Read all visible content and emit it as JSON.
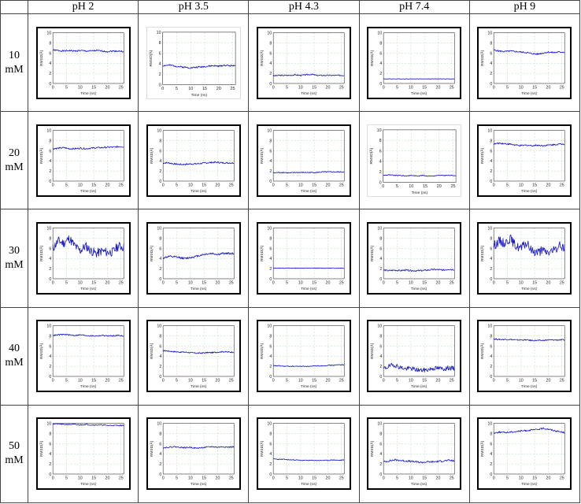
{
  "table": {
    "columns": [
      "pH 2",
      "pH 3.5",
      "pH 4.3",
      "pH 7.4",
      "pH 9"
    ],
    "rows": [
      {
        "value": "10",
        "unit": "mM"
      },
      {
        "value": "20",
        "unit": "mM"
      },
      {
        "value": "30",
        "unit": "mM"
      },
      {
        "value": "40",
        "unit": "mM"
      },
      {
        "value": "50",
        "unit": "mM"
      }
    ]
  },
  "chart_axes": {
    "xlabel": "Time (ns)",
    "ylabel": "RMSD(Å)",
    "xticks": [
      "0",
      "5",
      "10",
      "15",
      "20",
      "25"
    ],
    "yticks": [
      "0",
      "2",
      "4",
      "6",
      "8",
      "10"
    ],
    "xlim": [
      0,
      26
    ],
    "ylim": [
      0,
      10
    ]
  },
  "series_color": "#1a1acc",
  "chart_data": [
    {
      "type": "line",
      "row": "10 mM",
      "col": "pH 2",
      "framed": true,
      "x": [
        0,
        2,
        4,
        6,
        8,
        10,
        12,
        14,
        16,
        18,
        20,
        22,
        24,
        26
      ],
      "y": [
        6.6,
        6.5,
        6.4,
        6.5,
        6.4,
        6.5,
        6.4,
        6.4,
        6.5,
        6.4,
        6.3,
        6.4,
        6.4,
        6.3
      ],
      "noise": 0.15
    },
    {
      "type": "line",
      "row": "10 mM",
      "col": "pH 3.5",
      "framed": false,
      "x": [
        0,
        2,
        4,
        6,
        8,
        10,
        12,
        14,
        16,
        18,
        20,
        22,
        24,
        26
      ],
      "y": [
        3.6,
        3.7,
        3.6,
        3.4,
        3.3,
        3.2,
        3.3,
        3.4,
        3.5,
        3.6,
        3.5,
        3.7,
        3.6,
        3.7
      ],
      "noise": 0.15
    },
    {
      "type": "line",
      "row": "10 mM",
      "col": "pH 4.3",
      "framed": true,
      "x": [
        0,
        2,
        4,
        6,
        8,
        10,
        12,
        14,
        16,
        18,
        20,
        22,
        24,
        26
      ],
      "y": [
        1.5,
        1.6,
        1.6,
        1.6,
        1.7,
        1.6,
        1.7,
        1.8,
        1.6,
        1.6,
        1.6,
        1.6,
        1.6,
        1.6
      ],
      "noise": 0.12
    },
    {
      "type": "line",
      "row": "10 mM",
      "col": "pH 7.4",
      "framed": true,
      "x": [
        0,
        2,
        4,
        6,
        8,
        10,
        12,
        14,
        16,
        18,
        20,
        22,
        24,
        26
      ],
      "y": [
        0.9,
        0.9,
        0.9,
        0.9,
        0.9,
        0.9,
        0.9,
        0.9,
        0.9,
        0.9,
        0.9,
        0.9,
        0.9,
        0.9
      ],
      "noise": 0.04
    },
    {
      "type": "line",
      "row": "10 mM",
      "col": "pH 9",
      "framed": true,
      "x": [
        0,
        2,
        4,
        6,
        8,
        10,
        12,
        14,
        16,
        18,
        20,
        22,
        24,
        26
      ],
      "y": [
        6.6,
        6.4,
        6.3,
        6.4,
        6.3,
        6.2,
        6.1,
        5.9,
        5.8,
        6.0,
        6.2,
        6.1,
        6.2,
        6.2
      ],
      "noise": 0.15
    },
    {
      "type": "line",
      "row": "20 mM",
      "col": "pH 2",
      "framed": true,
      "x": [
        0,
        2,
        4,
        6,
        8,
        10,
        12,
        14,
        16,
        18,
        20,
        22,
        24,
        26
      ],
      "y": [
        6.4,
        6.5,
        6.6,
        6.4,
        6.4,
        6.5,
        6.4,
        6.5,
        6.6,
        6.6,
        6.7,
        6.7,
        6.8,
        6.8
      ],
      "noise": 0.15
    },
    {
      "type": "line",
      "row": "20 mM",
      "col": "pH 3.5",
      "framed": true,
      "x": [
        0,
        2,
        4,
        6,
        8,
        10,
        12,
        14,
        16,
        18,
        20,
        22,
        24,
        26
      ],
      "y": [
        3.6,
        3.6,
        3.4,
        3.3,
        3.3,
        3.4,
        3.4,
        3.5,
        3.6,
        3.7,
        3.7,
        3.6,
        3.6,
        3.6
      ],
      "noise": 0.15
    },
    {
      "type": "line",
      "row": "20 mM",
      "col": "pH 4.3",
      "framed": true,
      "x": [
        0,
        2,
        4,
        6,
        8,
        10,
        12,
        14,
        16,
        18,
        20,
        22,
        24,
        26
      ],
      "y": [
        1.6,
        1.7,
        1.7,
        1.6,
        1.7,
        1.7,
        1.7,
        1.7,
        1.7,
        1.8,
        1.8,
        1.8,
        1.8,
        1.8
      ],
      "noise": 0.1
    },
    {
      "type": "line",
      "row": "20 mM",
      "col": "pH 7.4",
      "framed": false,
      "x": [
        0,
        2,
        4,
        6,
        8,
        10,
        12,
        14,
        16,
        18,
        20,
        22,
        24,
        26
      ],
      "y": [
        1.3,
        1.4,
        1.3,
        1.3,
        1.2,
        1.3,
        1.2,
        1.3,
        1.2,
        1.2,
        1.3,
        1.3,
        1.3,
        1.3
      ],
      "noise": 0.08
    },
    {
      "type": "line",
      "row": "20 mM",
      "col": "pH 9",
      "framed": true,
      "x": [
        0,
        2,
        4,
        6,
        8,
        10,
        12,
        14,
        16,
        18,
        20,
        22,
        24,
        26
      ],
      "y": [
        7.3,
        7.5,
        7.4,
        7.3,
        7.1,
        7.0,
        7.1,
        7.0,
        7.1,
        7.0,
        7.1,
        7.2,
        7.3,
        7.3
      ],
      "noise": 0.15
    },
    {
      "type": "line",
      "row": "30 mM",
      "col": "pH 2",
      "framed": true,
      "x": [
        0,
        2,
        4,
        6,
        8,
        10,
        12,
        14,
        16,
        18,
        20,
        22,
        24,
        26
      ],
      "y": [
        6.0,
        7.5,
        7.0,
        8.0,
        6.5,
        5.5,
        6.5,
        5.5,
        5.0,
        5.5,
        5.2,
        5.3,
        6.5,
        6.2
      ],
      "noise": 0.9
    },
    {
      "type": "line",
      "row": "30 mM",
      "col": "pH 3.5",
      "framed": true,
      "x": [
        0,
        2,
        4,
        6,
        8,
        10,
        12,
        14,
        16,
        18,
        20,
        22,
        24,
        26
      ],
      "y": [
        4.1,
        4.4,
        4.3,
        4.2,
        4.0,
        4.2,
        4.4,
        4.7,
        4.9,
        5.0,
        4.8,
        5.0,
        5.0,
        5.0
      ],
      "noise": 0.2
    },
    {
      "type": "line",
      "row": "30 mM",
      "col": "pH 4.3",
      "framed": true,
      "x": [
        0,
        2,
        4,
        6,
        8,
        10,
        12,
        14,
        16,
        18,
        20,
        22,
        24,
        26
      ],
      "y": [
        2.1,
        2.1,
        2.1,
        2.1,
        2.1,
        2.1,
        2.1,
        2.1,
        2.1,
        2.1,
        2.1,
        2.1,
        2.1,
        2.1
      ],
      "noise": 0.05
    },
    {
      "type": "line",
      "row": "30 mM",
      "col": "pH 7.4",
      "framed": true,
      "x": [
        0,
        2,
        4,
        6,
        8,
        10,
        12,
        14,
        16,
        18,
        20,
        22,
        24,
        26
      ],
      "y": [
        1.7,
        1.6,
        1.7,
        1.6,
        1.7,
        1.6,
        1.6,
        1.6,
        1.7,
        1.8,
        1.8,
        1.7,
        1.9,
        1.8
      ],
      "noise": 0.15
    },
    {
      "type": "line",
      "row": "30 mM",
      "col": "pH 9",
      "framed": true,
      "x": [
        0,
        2,
        4,
        6,
        8,
        10,
        12,
        14,
        16,
        18,
        20,
        22,
        24,
        26
      ],
      "y": [
        6.5,
        7.5,
        7.0,
        8.0,
        6.5,
        6.0,
        7.0,
        5.5,
        5.3,
        5.5,
        5.2,
        5.5,
        6.5,
        6.2
      ],
      "noise": 0.9
    },
    {
      "type": "line",
      "row": "40 mM",
      "col": "pH 2",
      "framed": true,
      "x": [
        0,
        2,
        4,
        6,
        8,
        10,
        12,
        14,
        16,
        18,
        20,
        22,
        24,
        26
      ],
      "y": [
        8.1,
        8.2,
        8.3,
        8.2,
        8.1,
        8.2,
        8.1,
        8.0,
        8.0,
        8.1,
        8.0,
        8.0,
        8.1,
        8.0
      ],
      "noise": 0.12
    },
    {
      "type": "line",
      "row": "40 mM",
      "col": "pH 3.5",
      "framed": true,
      "x": [
        0,
        2,
        4,
        6,
        8,
        10,
        12,
        14,
        16,
        18,
        20,
        22,
        24,
        26
      ],
      "y": [
        5.1,
        5.0,
        4.9,
        4.8,
        4.8,
        4.7,
        4.6,
        4.6,
        4.7,
        4.7,
        4.8,
        4.9,
        4.8,
        4.8
      ],
      "noise": 0.12
    },
    {
      "type": "line",
      "row": "40 mM",
      "col": "pH 4.3",
      "framed": true,
      "x": [
        0,
        2,
        4,
        6,
        8,
        10,
        12,
        14,
        16,
        18,
        20,
        22,
        24,
        26
      ],
      "y": [
        2.1,
        2.1,
        2.0,
        2.0,
        2.0,
        2.0,
        2.0,
        2.0,
        2.1,
        2.1,
        2.2,
        2.2,
        2.3,
        2.3
      ],
      "noise": 0.08
    },
    {
      "type": "line",
      "row": "40 mM",
      "col": "pH 7.4",
      "framed": true,
      "x": [
        0,
        2,
        4,
        6,
        8,
        10,
        12,
        14,
        16,
        18,
        20,
        22,
        24,
        26
      ],
      "y": [
        1.5,
        2.0,
        2.3,
        1.8,
        1.5,
        1.6,
        1.3,
        1.2,
        1.3,
        1.6,
        1.6,
        1.5,
        1.7,
        1.5
      ],
      "noise": 0.45
    },
    {
      "type": "line",
      "row": "40 mM",
      "col": "pH 9",
      "framed": true,
      "x": [
        0,
        2,
        4,
        6,
        8,
        10,
        12,
        14,
        16,
        18,
        20,
        22,
        24,
        26
      ],
      "y": [
        7.4,
        7.3,
        7.3,
        7.3,
        7.2,
        7.2,
        7.2,
        7.1,
        7.1,
        7.1,
        7.2,
        7.2,
        7.2,
        7.2
      ],
      "noise": 0.12
    },
    {
      "type": "line",
      "row": "50 mM",
      "col": "pH 2",
      "framed": true,
      "x": [
        0,
        2,
        4,
        6,
        8,
        10,
        12,
        14,
        16,
        18,
        20,
        22,
        24,
        26
      ],
      "y": [
        9.9,
        9.9,
        9.8,
        9.8,
        9.8,
        9.7,
        9.8,
        9.7,
        9.7,
        9.7,
        9.6,
        9.6,
        9.6,
        9.6
      ],
      "noise": 0.1
    },
    {
      "type": "line",
      "row": "50 mM",
      "col": "pH 3.5",
      "framed": true,
      "x": [
        0,
        2,
        4,
        6,
        8,
        10,
        12,
        14,
        16,
        18,
        20,
        22,
        24,
        26
      ],
      "y": [
        5.2,
        5.3,
        5.4,
        5.3,
        5.2,
        5.3,
        5.1,
        5.2,
        5.3,
        5.4,
        5.3,
        5.4,
        5.3,
        5.4
      ],
      "noise": 0.12
    },
    {
      "type": "line",
      "row": "50 mM",
      "col": "pH 4.3",
      "framed": true,
      "x": [
        0,
        2,
        4,
        6,
        8,
        10,
        12,
        14,
        16,
        18,
        20,
        22,
        24,
        26
      ],
      "y": [
        3.0,
        2.9,
        2.9,
        2.8,
        2.8,
        2.7,
        2.7,
        2.7,
        2.7,
        2.7,
        2.7,
        2.8,
        2.7,
        2.8
      ],
      "noise": 0.08
    },
    {
      "type": "line",
      "row": "50 mM",
      "col": "pH 7.4",
      "framed": true,
      "x": [
        0,
        2,
        4,
        6,
        8,
        10,
        12,
        14,
        16,
        18,
        20,
        22,
        24,
        26
      ],
      "y": [
        2.4,
        2.6,
        2.8,
        2.7,
        2.6,
        2.5,
        2.4,
        2.3,
        2.4,
        2.4,
        2.5,
        2.6,
        2.7,
        2.6
      ],
      "noise": 0.18
    },
    {
      "type": "line",
      "row": "50 mM",
      "col": "pH 9",
      "framed": true,
      "x": [
        0,
        2,
        4,
        6,
        8,
        10,
        12,
        14,
        16,
        18,
        20,
        22,
        24,
        26
      ],
      "y": [
        8.1,
        8.3,
        8.2,
        8.3,
        8.4,
        8.5,
        8.6,
        8.7,
        8.8,
        9.0,
        8.9,
        8.6,
        8.4,
        8.2
      ],
      "noise": 0.15
    }
  ]
}
